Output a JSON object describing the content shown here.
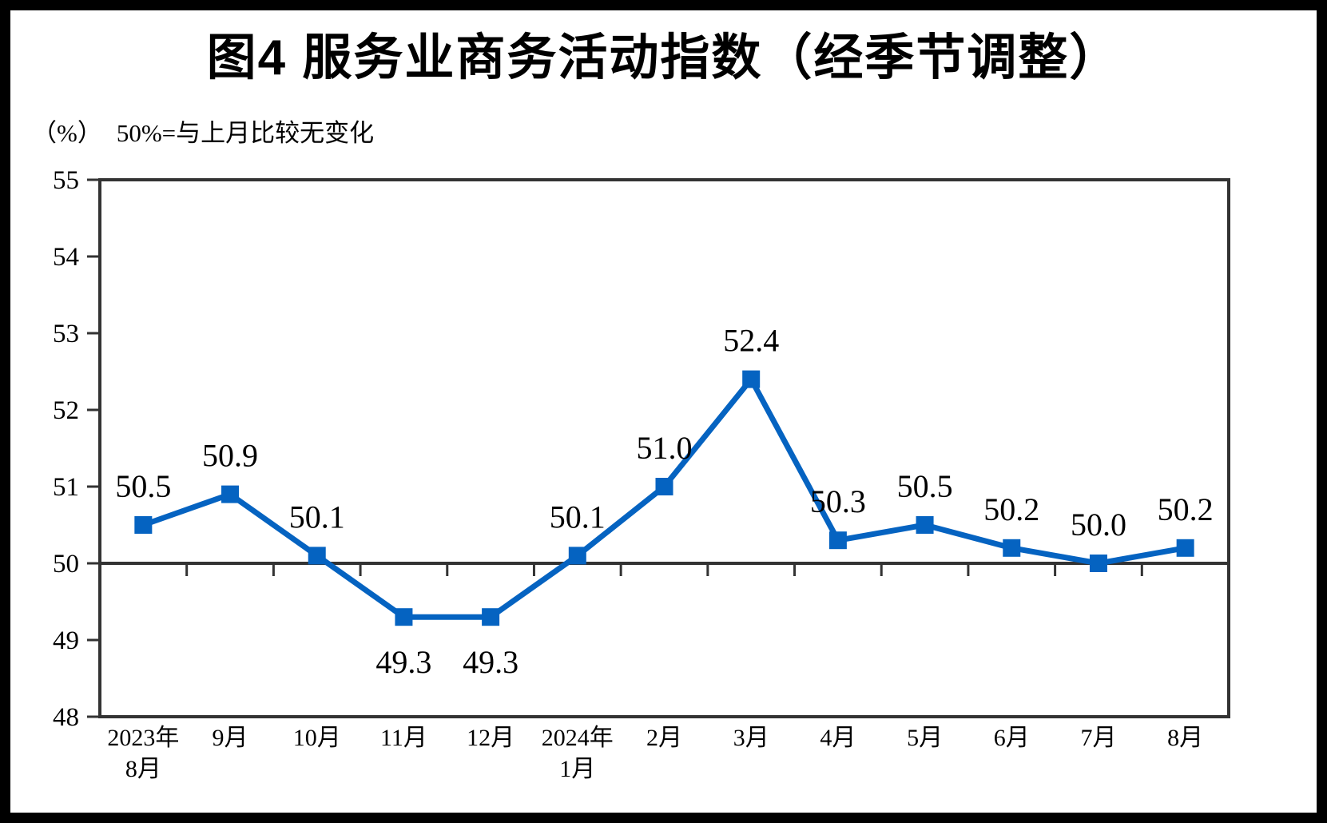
{
  "chart_data": {
    "type": "line",
    "title": "图4 服务业商务活动指数（经季节调整）",
    "unit_label": "（%）",
    "note": "50%=与上月比较无变化",
    "categories": [
      [
        "2023年",
        "8月"
      ],
      [
        "9月"
      ],
      [
        "10月"
      ],
      [
        "11月"
      ],
      [
        "12月"
      ],
      [
        "2024年",
        "1月"
      ],
      [
        "2月"
      ],
      [
        "3月"
      ],
      [
        "4月"
      ],
      [
        "5月"
      ],
      [
        "6月"
      ],
      [
        "7月"
      ],
      [
        "8月"
      ]
    ],
    "values": [
      50.5,
      50.9,
      50.1,
      49.3,
      49.3,
      50.1,
      51.0,
      52.4,
      50.3,
      50.5,
      50.2,
      50.0,
      50.2
    ],
    "ylim": [
      48,
      55
    ],
    "ytick_step": 1,
    "yticks": [
      48,
      49,
      50,
      51,
      52,
      53,
      54,
      55
    ],
    "baseline_value": 50,
    "grid": false,
    "legend": "none",
    "marker": "square",
    "data_label_decimals": 1,
    "line_color": "#0563C1",
    "axis_color": "#333333",
    "text_color": "#000000"
  }
}
